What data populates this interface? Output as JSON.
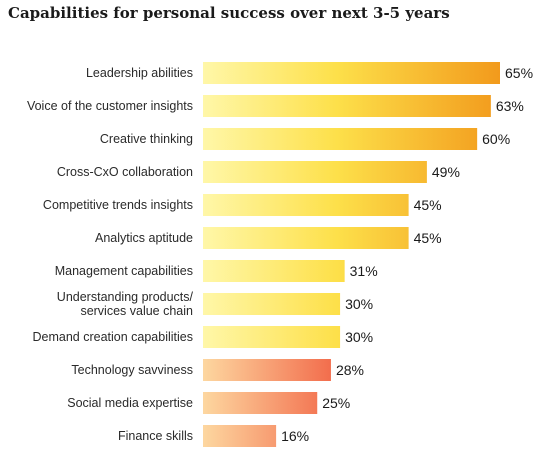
{
  "chart_data": {
    "type": "bar",
    "orientation": "horizontal",
    "title": "Capabilities for personal success over next 3-5 years",
    "xlabel": "",
    "ylabel": "",
    "xlim": [
      0,
      65
    ],
    "grid": false,
    "categories": [
      [
        "Leadership abilities"
      ],
      [
        "Voice of the customer insights"
      ],
      [
        "Creative thinking"
      ],
      [
        "Cross-CxO collaboration"
      ],
      [
        "Competitive trends insights"
      ],
      [
        "Analytics aptitude"
      ],
      [
        "Management capabilities"
      ],
      [
        "Understanding products/",
        "services value chain"
      ],
      [
        "Demand creation capabilities"
      ],
      [
        "Technology savviness"
      ],
      [
        "Social media expertise"
      ],
      [
        "Finance skills"
      ]
    ],
    "values": [
      65,
      63,
      60,
      49,
      45,
      45,
      31,
      30,
      30,
      28,
      25,
      16
    ],
    "value_labels": [
      "65%",
      "63%",
      "60%",
      "49%",
      "45%",
      "45%",
      "31%",
      "30%",
      "30%",
      "28%",
      "25%",
      "16%"
    ],
    "bar_groups": [
      "yellow",
      "yellow",
      "yellow",
      "yellow",
      "yellow",
      "yellow",
      "yellow",
      "yellow",
      "yellow",
      "coral",
      "coral",
      "coral"
    ],
    "colors": {
      "yellow_start": "#fff7a8",
      "yellow_end": "#f29a1c",
      "coral_start": "#fdd7a0",
      "coral_end": "#f26a4a"
    }
  }
}
